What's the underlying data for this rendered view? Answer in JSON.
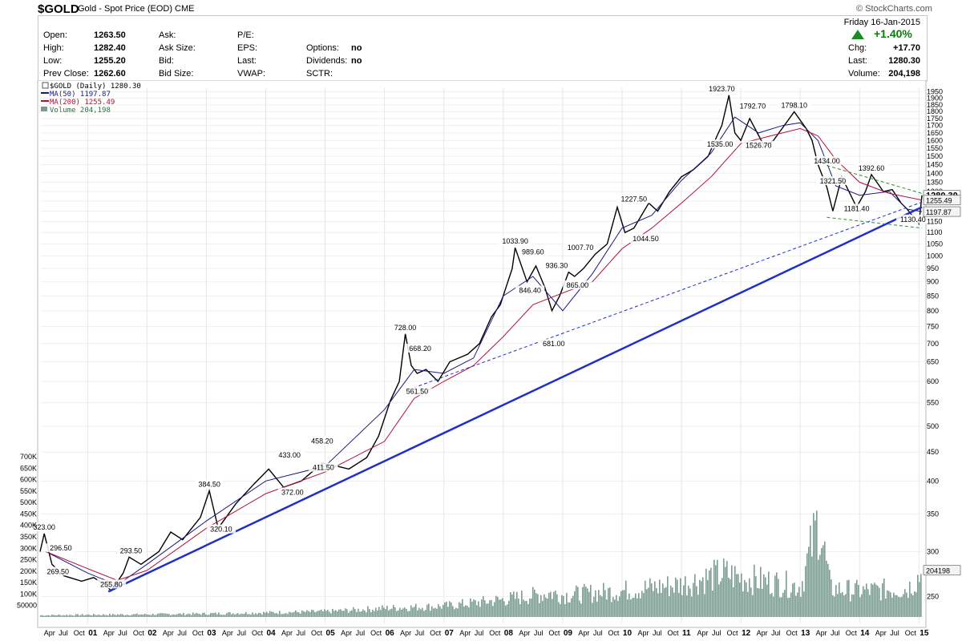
{
  "header": {
    "symbol": "$GOLD",
    "description": "Gold - Spot Price (EOD)",
    "exchange": "CME",
    "watermark": "© StockCharts.com",
    "date": "Friday  16-Jan-2015",
    "pct_change": "+1.40%",
    "fields": {
      "open_label": "Open:",
      "open": "1263.50",
      "high_label": "High:",
      "high": "1282.40",
      "low_label": "Low:",
      "low": "1255.20",
      "prev_label": "Prev Close:",
      "prev": "1262.60",
      "ask_label": "Ask:",
      "asksize_label": "Ask Size:",
      "bid_label": "Bid:",
      "bidsize_label": "Bid Size:",
      "pe_label": "P/E:",
      "eps_label": "EPS:",
      "last2_label": "Last:",
      "vwap_label": "VWAP:",
      "options_label": "Options:",
      "options": "no",
      "dividends_label": "Dividends:",
      "dividends": "no",
      "sctr_label": "SCTR:",
      "chg_label": "Chg:",
      "chg": "+17.70",
      "last_label": "Last:",
      "last": "1280.30",
      "volume_label": "Volume:",
      "volume": "204,198"
    },
    "legend": {
      "price": "$GOLD (Daily) 1280.30",
      "ma50": "MA(50) 1197.87",
      "ma200": "MA(200) 1255.49",
      "vol": "Volume 204,198"
    }
  },
  "colors": {
    "price": "#000000",
    "ma50": "#1a1a80",
    "ma200": "#b0103a",
    "volume": "#7f9a90",
    "trendline": "#1f2fc8",
    "channel": "#2e8b2e",
    "up_arrow": "#1f8a1f"
  },
  "chart_data": {
    "type": "line",
    "title": "$GOLD (Daily) 1280.30",
    "y_scale": "log",
    "ylim": [
      230,
      1980
    ],
    "price_ticks": [
      250,
      300,
      350,
      400,
      450,
      500,
      550,
      600,
      650,
      700,
      750,
      800,
      850,
      900,
      950,
      1000,
      1050,
      1100,
      1150,
      1200,
      1250,
      1300,
      1350,
      1400,
      1450,
      1500,
      1550,
      1600,
      1650,
      1700,
      1750,
      1800,
      1850,
      1900,
      1950
    ],
    "volume_ticks": [
      "50000",
      "100K",
      "150K",
      "200K",
      "250K",
      "300K",
      "350K",
      "400K",
      "450K",
      "500K",
      "550K",
      "600K",
      "650K",
      "700K"
    ],
    "volume_tick_values": [
      50000,
      100000,
      150000,
      200000,
      250000,
      300000,
      350000,
      400000,
      450000,
      500000,
      550000,
      600000,
      650000,
      700000
    ],
    "x_range": [
      2000.2,
      2015.05
    ],
    "year_labels": [
      "01",
      "02",
      "03",
      "04",
      "05",
      "06",
      "07",
      "08",
      "09",
      "10",
      "11",
      "12",
      "13",
      "14",
      "15"
    ],
    "month_labels": [
      "Apr",
      "Jul",
      "Oct"
    ],
    "series": [
      {
        "name": "$GOLD",
        "x": [
          2000.2,
          2000.27,
          2000.4,
          2000.6,
          2000.9,
          2001.1,
          2001.3,
          2001.4,
          2001.6,
          2001.7,
          2001.9,
          2002.2,
          2002.4,
          2002.6,
          2002.9,
          2003.05,
          2003.2,
          2003.5,
          2003.8,
          2004.05,
          2004.3,
          2004.6,
          2004.95,
          2005.2,
          2005.4,
          2005.7,
          2005.9,
          2006.1,
          2006.25,
          2006.35,
          2006.45,
          2006.55,
          2006.7,
          2006.9,
          2007.1,
          2007.4,
          2007.6,
          2007.8,
          2007.95,
          2008.15,
          2008.2,
          2008.4,
          2008.55,
          2008.7,
          2008.82,
          2008.95,
          2009.1,
          2009.2,
          2009.35,
          2009.55,
          2009.75,
          2009.92,
          2010.05,
          2010.2,
          2010.45,
          2010.6,
          2010.8,
          2011.0,
          2011.2,
          2011.45,
          2011.6,
          2011.68,
          2011.8,
          2011.9,
          2012.0,
          2012.15,
          2012.4,
          2012.55,
          2012.75,
          2012.9,
          2013.1,
          2013.2,
          2013.3,
          2013.45,
          2013.55,
          2013.7,
          2013.95,
          2014.1,
          2014.2,
          2014.4,
          2014.55,
          2014.7,
          2014.8,
          2014.88,
          2015.0,
          2015.05
        ],
        "values": [
          300,
          323,
          285,
          272,
          266,
          270,
          262,
          255.8,
          275,
          293.5,
          285,
          300,
          325,
          315,
          345,
          384.5,
          330,
          365,
          395,
          420,
          390,
          400,
          430,
          425,
          420,
          440,
          480,
          555,
          600,
          728,
          640,
          620,
          630,
          600,
          650,
          670,
          700,
          780,
          820,
          950,
          1033.9,
          900,
          960,
          880,
          800,
          850,
          936,
          920,
          950,
          1007.7,
          1050,
          1220,
          1100,
          1120,
          1240,
          1200,
          1300,
          1380,
          1420,
          1500,
          1630,
          1700,
          1923.7,
          1650,
          1600,
          1750,
          1560,
          1600,
          1710,
          1798.1,
          1680,
          1600,
          1450,
          1321.5,
          1200,
          1380,
          1220,
          1300,
          1392.6,
          1300,
          1310,
          1240,
          1210,
          1181,
          1140,
          1280.3
        ]
      },
      {
        "name": "MA(50)",
        "x": [
          2000.3,
          2001.0,
          2001.5,
          2002.0,
          2003.0,
          2004.0,
          2005.0,
          2006.0,
          2006.5,
          2007.0,
          2007.5,
          2008.0,
          2008.5,
          2009.0,
          2009.5,
          2010.0,
          2010.5,
          2011.0,
          2011.5,
          2011.9,
          2012.3,
          2012.7,
          2013.0,
          2013.3,
          2013.6,
          2014.0,
          2014.5,
          2014.8,
          2015.05
        ],
        "values": [
          300,
          275,
          262,
          285,
          340,
          400,
          425,
          535,
          630,
          620,
          660,
          850,
          920,
          800,
          930,
          1120,
          1180,
          1360,
          1520,
          1760,
          1650,
          1700,
          1720,
          1600,
          1330,
          1280,
          1300,
          1210,
          1197.87
        ]
      },
      {
        "name": "MA(200)",
        "x": [
          2000.3,
          2001.0,
          2001.5,
          2002.0,
          2003.0,
          2004.0,
          2005.0,
          2006.0,
          2006.5,
          2007.0,
          2007.5,
          2008.0,
          2008.5,
          2009.0,
          2009.5,
          2010.0,
          2010.5,
          2011.0,
          2011.5,
          2012.0,
          2012.5,
          2013.0,
          2013.3,
          2013.6,
          2014.0,
          2014.5,
          2015.05
        ],
        "values": [
          300,
          280,
          267,
          278,
          330,
          380,
          415,
          470,
          560,
          600,
          640,
          720,
          820,
          860,
          900,
          1030,
          1120,
          1240,
          1380,
          1580,
          1630,
          1680,
          1630,
          1480,
          1350,
          1290,
          1255.49
        ]
      }
    ],
    "price_labels": [
      {
        "x": 2000.27,
        "v": 323,
        "t": "323.00"
      },
      {
        "x": 2000.55,
        "v": 296.5,
        "t": "296.50"
      },
      {
        "x": 2000.5,
        "v": 269.5,
        "t": "269.50"
      },
      {
        "x": 2001.4,
        "v": 255.8,
        "t": "255.80"
      },
      {
        "x": 2001.73,
        "v": 293.5,
        "t": "293.50"
      },
      {
        "x": 2003.05,
        "v": 384.5,
        "t": "384.50"
      },
      {
        "x": 2003.25,
        "v": 320.1,
        "t": "320.10"
      },
      {
        "x": 2004.4,
        "v": 433,
        "t": "433.00"
      },
      {
        "x": 2004.45,
        "v": 372,
        "t": "372.00"
      },
      {
        "x": 2004.95,
        "v": 458.2,
        "t": "458.20"
      },
      {
        "x": 2004.97,
        "v": 411.5,
        "t": "411.50"
      },
      {
        "x": 2006.35,
        "v": 728,
        "t": "728.00"
      },
      {
        "x": 2006.6,
        "v": 668.2,
        "t": "668.20"
      },
      {
        "x": 2006.55,
        "v": 561.5,
        "t": "561.50"
      },
      {
        "x": 2008.2,
        "v": 1033.9,
        "t": "1033.90"
      },
      {
        "x": 2008.5,
        "v": 989.6,
        "t": "989.60"
      },
      {
        "x": 2008.9,
        "v": 936.3,
        "t": "936.30"
      },
      {
        "x": 2008.45,
        "v": 846.4,
        "t": "846.40"
      },
      {
        "x": 2009.3,
        "v": 1007.7,
        "t": "1007.70"
      },
      {
        "x": 2009.25,
        "v": 865,
        "t": "865.00"
      },
      {
        "x": 2008.85,
        "v": 681,
        "t": "681.00"
      },
      {
        "x": 2010.2,
        "v": 1227.5,
        "t": "1227.50"
      },
      {
        "x": 2010.4,
        "v": 1044.5,
        "t": "1044.50"
      },
      {
        "x": 2011.68,
        "v": 1923.7,
        "t": "1923.70"
      },
      {
        "x": 2011.65,
        "v": 1535,
        "t": "1535.00"
      },
      {
        "x": 2012.2,
        "v": 1792.7,
        "t": "1792.70"
      },
      {
        "x": 2012.3,
        "v": 1526.7,
        "t": "1526.70"
      },
      {
        "x": 2012.9,
        "v": 1798.1,
        "t": "1798.10"
      },
      {
        "x": 2013.45,
        "v": 1434,
        "t": "1434.00"
      },
      {
        "x": 2013.55,
        "v": 1321.5,
        "t": "1321.50"
      },
      {
        "x": 2014.2,
        "v": 1392.6,
        "t": "1392.60"
      },
      {
        "x": 2013.95,
        "v": 1181.4,
        "t": "1181.40"
      },
      {
        "x": 2014.9,
        "v": 1130.4,
        "t": "1130.40"
      }
    ],
    "right_labels": [
      {
        "v": 1280.3,
        "t": "1280.30",
        "style": "last"
      },
      {
        "v": 1255.49,
        "t": "1255.49",
        "style": "ma200"
      },
      {
        "v": 1197.87,
        "t": "1197.87",
        "style": "ma50"
      },
      {
        "v": 204198,
        "t": "204198",
        "style": "vol"
      }
    ],
    "trendlines": [
      {
        "name": "long-support",
        "x1": 2001.35,
        "x2": 2015.05,
        "v1": 255,
        "v2": 1220,
        "style": "solid"
      },
      {
        "name": "mid-support",
        "x1": 2006.4,
        "x2": 2015.05,
        "v1": 580,
        "v2": 1245,
        "style": "dashed"
      },
      {
        "name": "channel-top",
        "x1": 2013.45,
        "x2": 2015.05,
        "v1": 1445,
        "v2": 1290,
        "style": "dashed"
      },
      {
        "name": "channel-bottom",
        "x1": 2013.45,
        "x2": 2015.05,
        "v1": 1170,
        "v2": 1120,
        "style": "dashed"
      }
    ],
    "volume": {
      "max": 700000,
      "x": [
        2000.2,
        2001.0,
        2002.0,
        2003.0,
        2004.0,
        2005.0,
        2006.0,
        2007.0,
        2008.0,
        2008.8,
        2009.0,
        2010.0,
        2011.0,
        2011.7,
        2012.0,
        2013.0,
        2013.3,
        2013.5,
        2014.0,
        2014.8,
        2015.05
      ],
      "values": [
        8000,
        10000,
        12000,
        15000,
        20000,
        25000,
        40000,
        50000,
        80000,
        110000,
        100000,
        120000,
        150000,
        200000,
        180000,
        140000,
        450000,
        130000,
        120000,
        130000,
        204198
      ]
    }
  }
}
